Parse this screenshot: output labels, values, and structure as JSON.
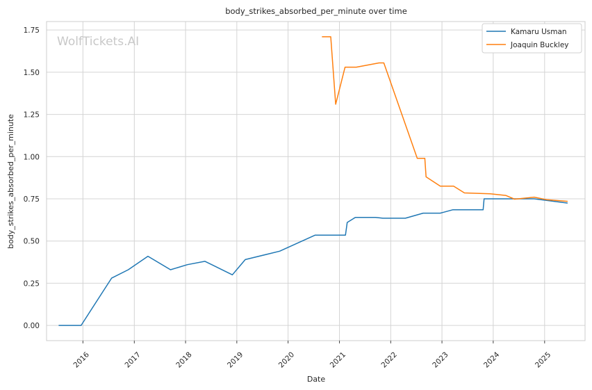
{
  "watermark": "WolfTickets.AI",
  "chart_data": {
    "type": "line",
    "title": "body_strikes_absorbed_per_minute over time",
    "xlabel": "Date",
    "ylabel": "body_strikes_absorbed_per_minute",
    "x_ticks": [
      "2016",
      "2017",
      "2018",
      "2019",
      "2020",
      "2021",
      "2022",
      "2023",
      "2024",
      "2025"
    ],
    "y_ticks": [
      "0.00",
      "0.25",
      "0.50",
      "0.75",
      "1.00",
      "1.25",
      "1.50",
      "1.75"
    ],
    "xlim": [
      "2015-04-17",
      "2025-10-16"
    ],
    "ylim": [
      -0.09,
      1.8
    ],
    "grid": true,
    "legend_position": "top-right",
    "series": [
      {
        "name": "Kamaru Usman",
        "color": "#1f77b4",
        "points": [
          [
            "2015-07-12",
            0.0
          ],
          [
            "2015-12-19",
            0.0
          ],
          [
            "2016-07-23",
            0.28
          ],
          [
            "2016-11-19",
            0.33
          ],
          [
            "2017-04-08",
            0.41
          ],
          [
            "2017-09-16",
            0.33
          ],
          [
            "2018-01-14",
            0.36
          ],
          [
            "2018-05-19",
            0.38
          ],
          [
            "2018-11-30",
            0.3
          ],
          [
            "2019-03-02",
            0.39
          ],
          [
            "2019-11-02",
            0.44
          ],
          [
            "2020-07-12",
            0.535
          ],
          [
            "2021-02-13",
            0.535
          ],
          [
            "2021-02-25",
            0.61
          ],
          [
            "2021-04-24",
            0.64
          ],
          [
            "2021-09-15",
            0.64
          ],
          [
            "2021-11-06",
            0.635
          ],
          [
            "2022-04-16",
            0.635
          ],
          [
            "2022-08-20",
            0.665
          ],
          [
            "2022-12-20",
            0.665
          ],
          [
            "2023-03-18",
            0.685
          ],
          [
            "2023-10-21",
            0.685
          ],
          [
            "2023-10-28",
            0.75
          ],
          [
            "2024-04-13",
            0.75
          ],
          [
            "2024-10-19",
            0.75
          ],
          [
            "2025-06-14",
            0.725
          ]
        ]
      },
      {
        "name": "Joaquin Buckley",
        "color": "#ff7f0e",
        "points": [
          [
            "2020-08-29",
            1.71
          ],
          [
            "2020-10-31",
            1.71
          ],
          [
            "2020-12-05",
            1.31
          ],
          [
            "2021-02-10",
            1.53
          ],
          [
            "2021-05-01",
            1.53
          ],
          [
            "2021-10-10",
            1.555
          ],
          [
            "2021-11-13",
            1.555
          ],
          [
            "2022-07-09",
            0.99
          ],
          [
            "2022-09-01",
            0.99
          ],
          [
            "2022-09-10",
            0.88
          ],
          [
            "2022-12-20",
            0.825
          ],
          [
            "2023-03-25",
            0.825
          ],
          [
            "2023-06-10",
            0.785
          ],
          [
            "2023-12-10",
            0.78
          ],
          [
            "2024-03-30",
            0.77
          ],
          [
            "2024-06-01",
            0.748
          ],
          [
            "2024-10-19",
            0.76
          ],
          [
            "2025-01-15",
            0.745
          ],
          [
            "2025-06-14",
            0.735
          ]
        ]
      }
    ]
  }
}
